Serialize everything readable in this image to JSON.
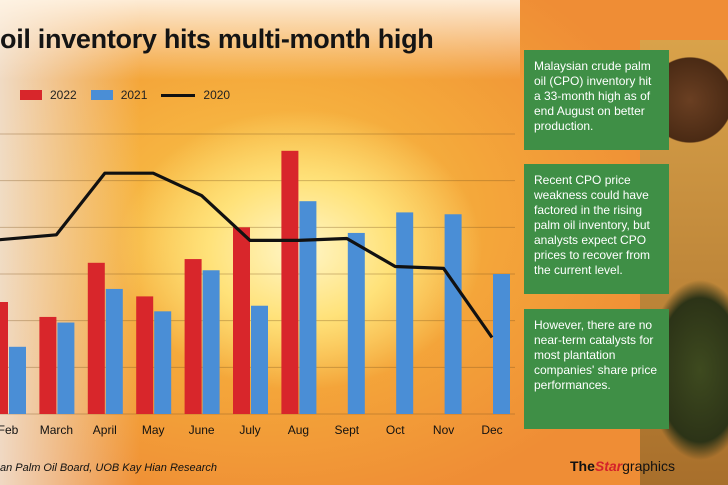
{
  "title": "oil inventory hits multi-month high",
  "legend": [
    {
      "label": "2022",
      "color": "#d8262b",
      "kind": "bar"
    },
    {
      "label": "2021",
      "color": "#4a8ed6",
      "kind": "bar"
    },
    {
      "label": "2020",
      "color": "#111111",
      "kind": "line"
    }
  ],
  "panels": [
    "Malaysian crude palm oil (CPO) inventory hit a 33-month high as of end August on better production.",
    "Recent CPO price weakness could have factored in the rising palm oil inventory, but analysts expect CPO prices to recover from the current level.",
    "However, there are no near-term catalysts for most plantation companies' share price performances."
  ],
  "source": "an Palm Oil Board, UOB Kay Hian Research",
  "brand": {
    "the": "The",
    "star": "Star",
    "graphics": "graphics"
  },
  "chart_data": {
    "type": "bar",
    "categories": [
      "Feb",
      "March",
      "April",
      "May",
      "June",
      "July",
      "Aug",
      "Sept",
      "Oct",
      "Nov",
      "Dec"
    ],
    "series": [
      {
        "name": "2022",
        "type": "bar",
        "color": "#d8262b",
        "values": [
          1.6,
          1.52,
          1.81,
          1.63,
          1.83,
          2.0,
          2.41,
          null,
          null,
          null,
          null
        ]
      },
      {
        "name": "2021",
        "type": "bar",
        "color": "#4a8ed6",
        "values": [
          1.36,
          1.49,
          1.67,
          1.55,
          1.77,
          1.58,
          2.14,
          1.97,
          2.08,
          2.07,
          1.75
        ]
      },
      {
        "name": "2020",
        "type": "line",
        "color": "#111111",
        "values": [
          1.93,
          1.96,
          2.29,
          2.29,
          2.17,
          1.93,
          1.93,
          1.94,
          1.79,
          1.78,
          1.41
        ]
      }
    ],
    "ylim": [
      1.0,
      2.5
    ],
    "grid": true,
    "legend_position": "top-left"
  }
}
